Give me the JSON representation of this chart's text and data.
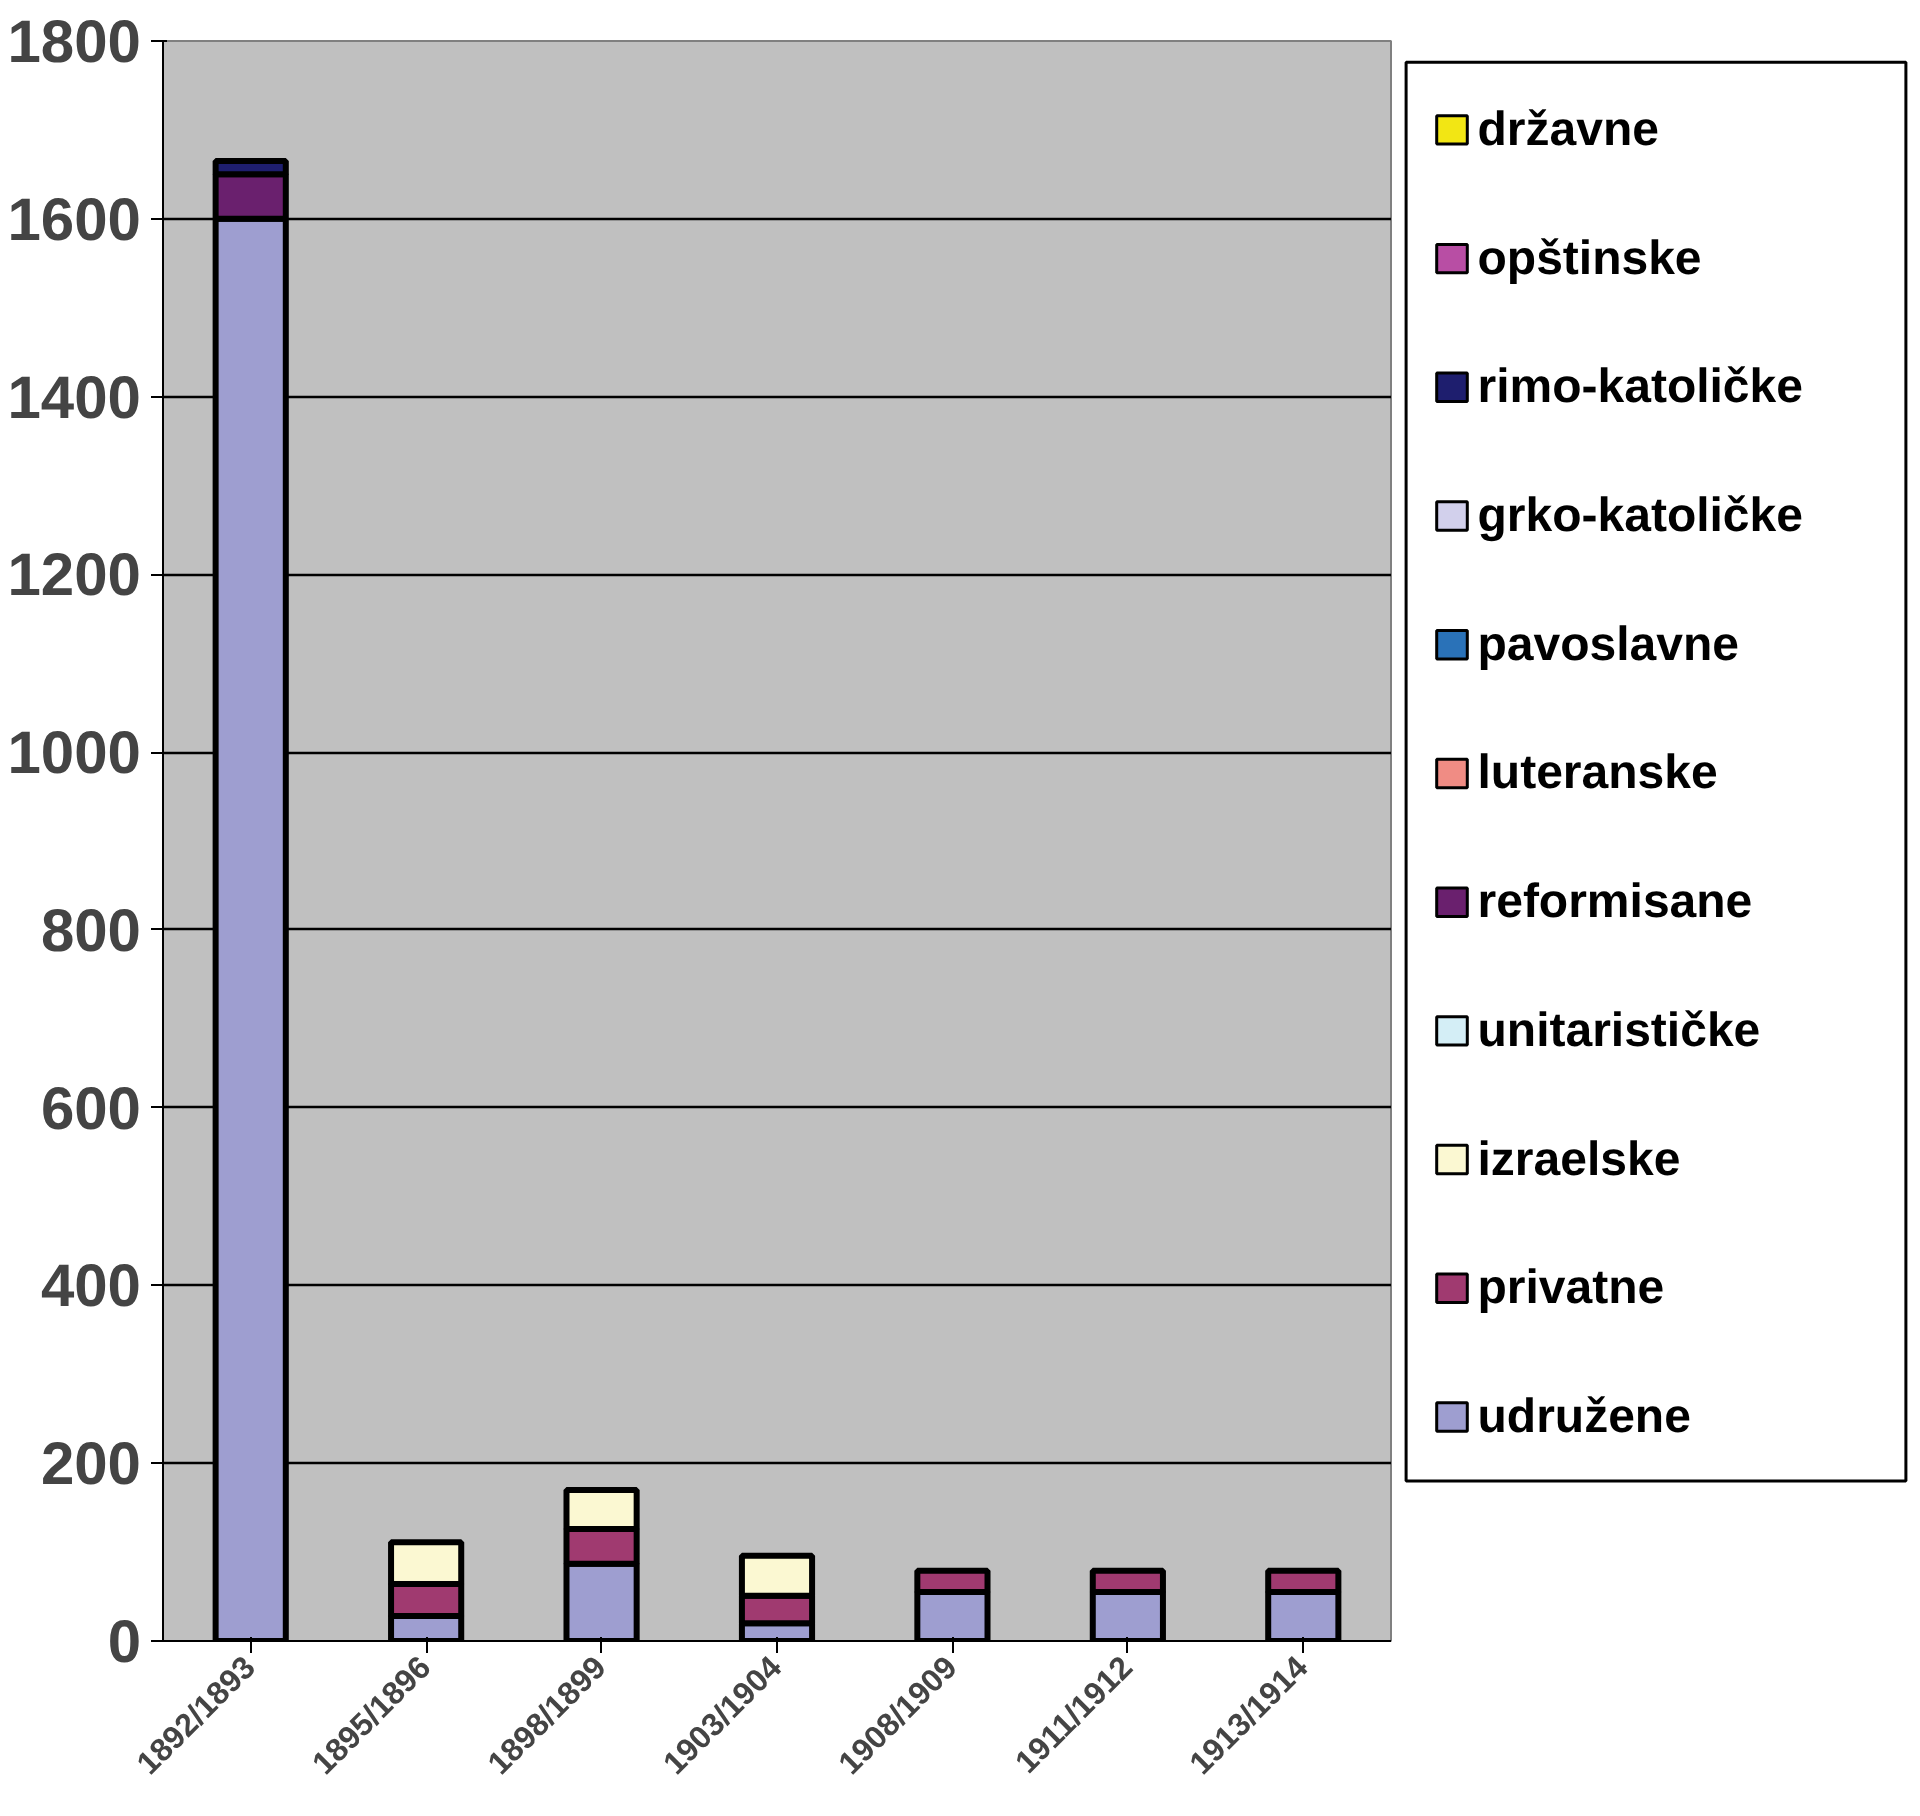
{
  "chart_data": {
    "type": "bar",
    "stacked": true,
    "categories": [
      "1892/1893",
      "1895/1896",
      "1898/1899",
      "1903/1904",
      "1908/1909",
      "1911/1912",
      "1913/1914"
    ],
    "series": [
      {
        "name": "udružene",
        "color": "#9e9ed0",
        "values": [
          1600,
          28,
          87,
          20,
          55,
          55,
          55
        ]
      },
      {
        "name": "privatne",
        "color": "#a03a70",
        "values": [
          0,
          36,
          39,
          31,
          24,
          24,
          24
        ]
      },
      {
        "name": "izraelske",
        "color": "#fbf8d2",
        "values": [
          0,
          47,
          44,
          45,
          0,
          0,
          0
        ]
      },
      {
        "name": "unitarističke",
        "color": "#d4eef6",
        "values": [
          0,
          0,
          0,
          0,
          0,
          0,
          0
        ]
      },
      {
        "name": "reformisane",
        "color": "#6a206e",
        "values": [
          50,
          0,
          0,
          0,
          0,
          0,
          0
        ]
      },
      {
        "name": "luteranske",
        "color": "#f08c84",
        "values": [
          0,
          0,
          0,
          0,
          0,
          0,
          0
        ]
      },
      {
        "name": "pavoslavne",
        "color": "#2a72b8",
        "values": [
          0,
          0,
          0,
          0,
          0,
          0,
          0
        ]
      },
      {
        "name": "grko-katoličke",
        "color": "#d2d0ec",
        "values": [
          0,
          0,
          0,
          0,
          0,
          0,
          0
        ]
      },
      {
        "name": "rimo-katoličke",
        "color": "#1e1e6e",
        "values": [
          15,
          0,
          0,
          0,
          0,
          0,
          0
        ]
      },
      {
        "name": "opštinske",
        "color": "#b84ea4",
        "values": [
          0,
          0,
          0,
          0,
          0,
          0,
          0
        ]
      },
      {
        "name": "državne",
        "color": "#f2e614",
        "values": [
          0,
          0,
          0,
          0,
          0,
          0,
          0
        ]
      }
    ],
    "ylim": [
      0,
      1800
    ],
    "yticks": [
      0,
      200,
      400,
      600,
      800,
      1000,
      1200,
      1400,
      1600,
      1800
    ],
    "grid": "y",
    "legend": "right"
  }
}
